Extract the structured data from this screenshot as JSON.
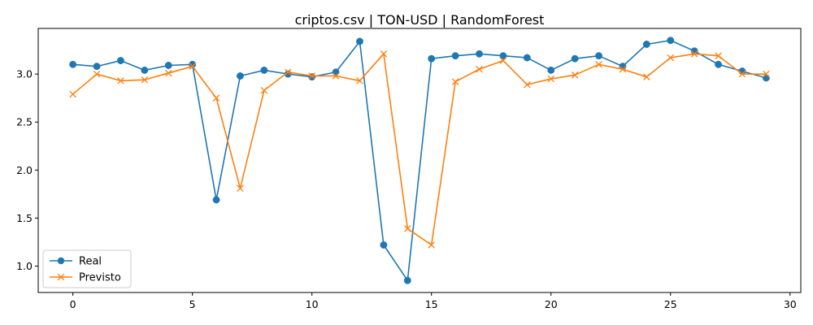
{
  "chart_data": {
    "type": "line",
    "title": "criptos.csv | TON-USD | RandomForest",
    "xlabel": "",
    "ylabel": "",
    "xlim": [
      -1.45,
      30.45
    ],
    "ylim": [
      0.725,
      3.475
    ],
    "xticks": [
      0,
      5,
      10,
      15,
      20,
      25,
      30
    ],
    "xtick_labels": [
      "0",
      "5",
      "10",
      "15",
      "20",
      "25",
      "30"
    ],
    "yticks": [
      1.0,
      1.5,
      2.0,
      2.5,
      3.0
    ],
    "ytick_labels": [
      "1.0",
      "1.5",
      "2.0",
      "2.5",
      "3.0"
    ],
    "grid": false,
    "legend_position": "lower-left",
    "x": [
      0,
      1,
      2,
      3,
      4,
      5,
      6,
      7,
      8,
      9,
      10,
      11,
      12,
      13,
      14,
      15,
      16,
      17,
      18,
      19,
      20,
      21,
      22,
      23,
      24,
      25,
      26,
      27,
      28,
      29
    ],
    "series": [
      {
        "name": "Real",
        "color": "#1f77b4",
        "marker": "circle",
        "values": [
          3.1,
          3.08,
          3.14,
          3.04,
          3.09,
          3.1,
          1.69,
          2.98,
          3.04,
          3.0,
          2.97,
          3.02,
          3.34,
          1.22,
          0.85,
          3.16,
          3.19,
          3.21,
          3.19,
          3.17,
          3.04,
          3.16,
          3.19,
          3.08,
          3.31,
          3.35,
          3.24,
          3.1,
          3.03,
          2.96
        ]
      },
      {
        "name": "Previsto",
        "color": "#ff7f0e",
        "marker": "x",
        "values": [
          2.79,
          3.0,
          2.93,
          2.94,
          3.01,
          3.08,
          2.75,
          1.81,
          2.83,
          3.02,
          2.98,
          2.98,
          2.93,
          3.21,
          1.39,
          1.22,
          2.92,
          3.05,
          3.14,
          2.89,
          2.95,
          2.99,
          3.1,
          3.05,
          2.97,
          3.17,
          3.21,
          3.19,
          3.0,
          3.0
        ]
      }
    ]
  }
}
